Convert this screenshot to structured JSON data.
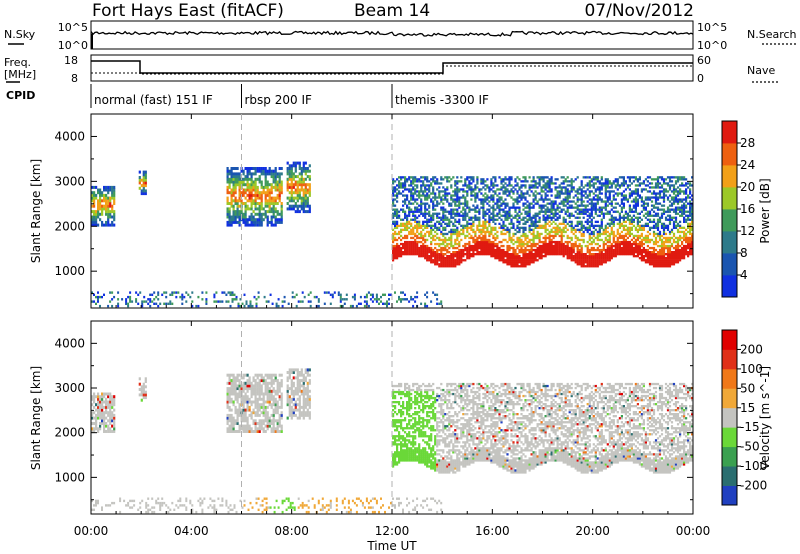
{
  "header": {
    "station": "Fort Hays East (fitACF)",
    "beam": "Beam 14",
    "date": "07/Nov/2012"
  },
  "sky_panel": {
    "left_label": "N.Sky",
    "left_ticks": [
      "10^5",
      "10^0"
    ],
    "right_label": "N.Search",
    "right_ticks": [
      "10^5",
      "10^0"
    ]
  },
  "freq_panel": {
    "left_label_1": "Freq.",
    "left_label_2": "[MHz]",
    "left_ticks": [
      "18",
      "8"
    ],
    "right_label": "Nave",
    "right_ticks": [
      "60",
      "0"
    ]
  },
  "cpid_panel": {
    "label": "CPID",
    "segments": [
      {
        "label": "normal (fast) 151 IF",
        "start_hour": 0
      },
      {
        "label": "rbsp 200 IF",
        "start_hour": 6
      },
      {
        "label": "themis -3300 IF",
        "start_hour": 12
      }
    ]
  },
  "x_axis": {
    "label": "Time UT",
    "tick_labels": [
      "00:00",
      "04:00",
      "08:00",
      "12:00",
      "16:00",
      "20:00",
      "00:00"
    ],
    "range_hours": [
      0,
      24
    ]
  },
  "chart_data": [
    {
      "type": "heatmap",
      "quantity": "Power",
      "ylabel": "Slant Range [km]",
      "ylim": [
        180,
        4500
      ],
      "y_tick_labels": [
        "1000",
        "2000",
        "3000",
        "4000"
      ],
      "colorbar": {
        "label": "Power [dB]",
        "tick_labels": [
          "4",
          "8",
          "12",
          "16",
          "20",
          "24",
          "28"
        ],
        "colors": [
          "#1030e0",
          "#1a55b0",
          "#2d7a8a",
          "#3f9a5a",
          "#9cc828",
          "#f2a018",
          "#ee6010",
          "#e01a10"
        ]
      },
      "regions": [
        {
          "t0": 0.0,
          "t1": 0.9,
          "r0": 2000,
          "r1": 2900
        },
        {
          "t0": 1.9,
          "t1": 2.2,
          "r0": 2700,
          "r1": 3200
        },
        {
          "t0": 5.4,
          "t1": 7.6,
          "r0": 2000,
          "r1": 3300
        },
        {
          "t0": 7.8,
          "t1": 8.7,
          "r0": 2300,
          "r1": 3400
        },
        {
          "t0": 12.0,
          "t1": 24.0,
          "r0": 1000,
          "r1": 3100
        }
      ]
    },
    {
      "type": "heatmap",
      "quantity": "Velocity",
      "ylabel": "Slant Range [km]",
      "ylim": [
        180,
        4500
      ],
      "y_tick_labels": [
        "1000",
        "2000",
        "3000",
        "4000"
      ],
      "colorbar": {
        "label": "Velocity [m s^-1]",
        "tick_labels": [
          "200",
          "100",
          "50",
          "15",
          "-15",
          "-50",
          "-100",
          "-200"
        ],
        "colors": [
          "#2040c0",
          "#2a6e70",
          "#3aa050",
          "#6ad838",
          "#c4c4c0",
          "#f0a838",
          "#f07818",
          "#e03018",
          "#e00000"
        ]
      },
      "regions": [
        {
          "t0": 0.0,
          "t1": 0.9,
          "r0": 2000,
          "r1": 2900
        },
        {
          "t0": 1.9,
          "t1": 2.2,
          "r0": 2700,
          "r1": 3200
        },
        {
          "t0": 5.4,
          "t1": 7.6,
          "r0": 2000,
          "r1": 3300
        },
        {
          "t0": 7.8,
          "t1": 8.7,
          "r0": 2300,
          "r1": 3400
        },
        {
          "t0": 12.0,
          "t1": 24.0,
          "r0": 1000,
          "r1": 3100
        }
      ]
    }
  ]
}
